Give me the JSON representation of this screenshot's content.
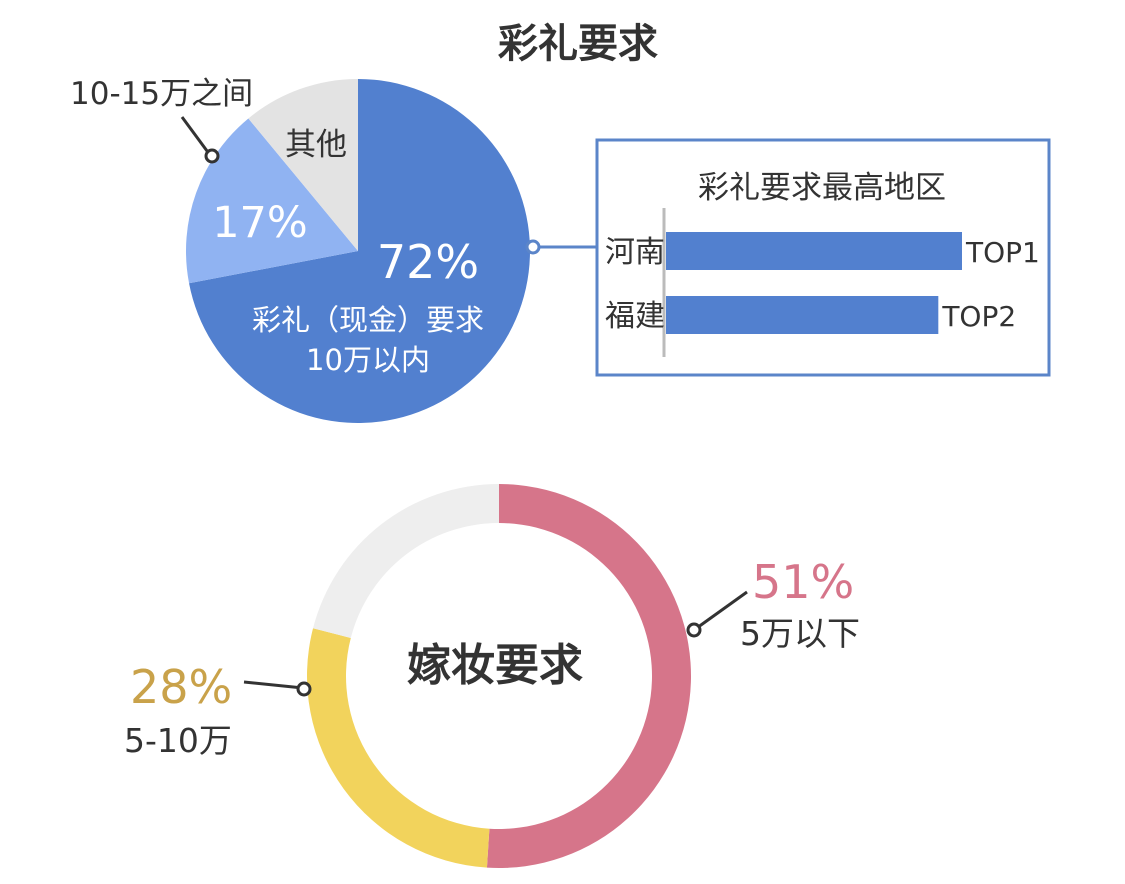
{
  "chart_data": [
    {
      "type": "pie",
      "title": "彩礼要求",
      "slices": [
        {
          "label_lines": [
            "彩礼（现金）要求",
            "10万以内"
          ],
          "percent_label": "72%",
          "value": 72,
          "color": "#5280cf"
        },
        {
          "label_lines": [
            "10-15万之间"
          ],
          "percent_label": "17%",
          "value": 17,
          "color": "#90b3f2"
        },
        {
          "label_lines": [
            "其他"
          ],
          "percent_label": "",
          "value": 11,
          "color": "#e3e3e3"
        }
      ]
    },
    {
      "type": "bar",
      "orientation": "horizontal",
      "title": "彩礼要求最高地区",
      "categories": [
        "河南",
        "福建"
      ],
      "values": [
        1,
        0.92
      ],
      "value_labels": [
        "TOP1",
        "TOP2"
      ],
      "color": "#5280cf",
      "border_color": "#5b85c9"
    },
    {
      "type": "pie",
      "variant": "donut",
      "title": "嫁妆要求",
      "slices": [
        {
          "label_lines": [
            "5万以下"
          ],
          "percent_label": "51%",
          "value": 51,
          "color": "#d6758a"
        },
        {
          "label_lines": [
            "5-10万"
          ],
          "percent_label": "28%",
          "value": 28,
          "color": "#f2d35c"
        },
        {
          "label_lines": [],
          "percent_label": "",
          "value": 21,
          "color": "#eeeeee"
        }
      ],
      "percent_colors": [
        "#d6758a",
        "#c9a24a"
      ]
    }
  ]
}
